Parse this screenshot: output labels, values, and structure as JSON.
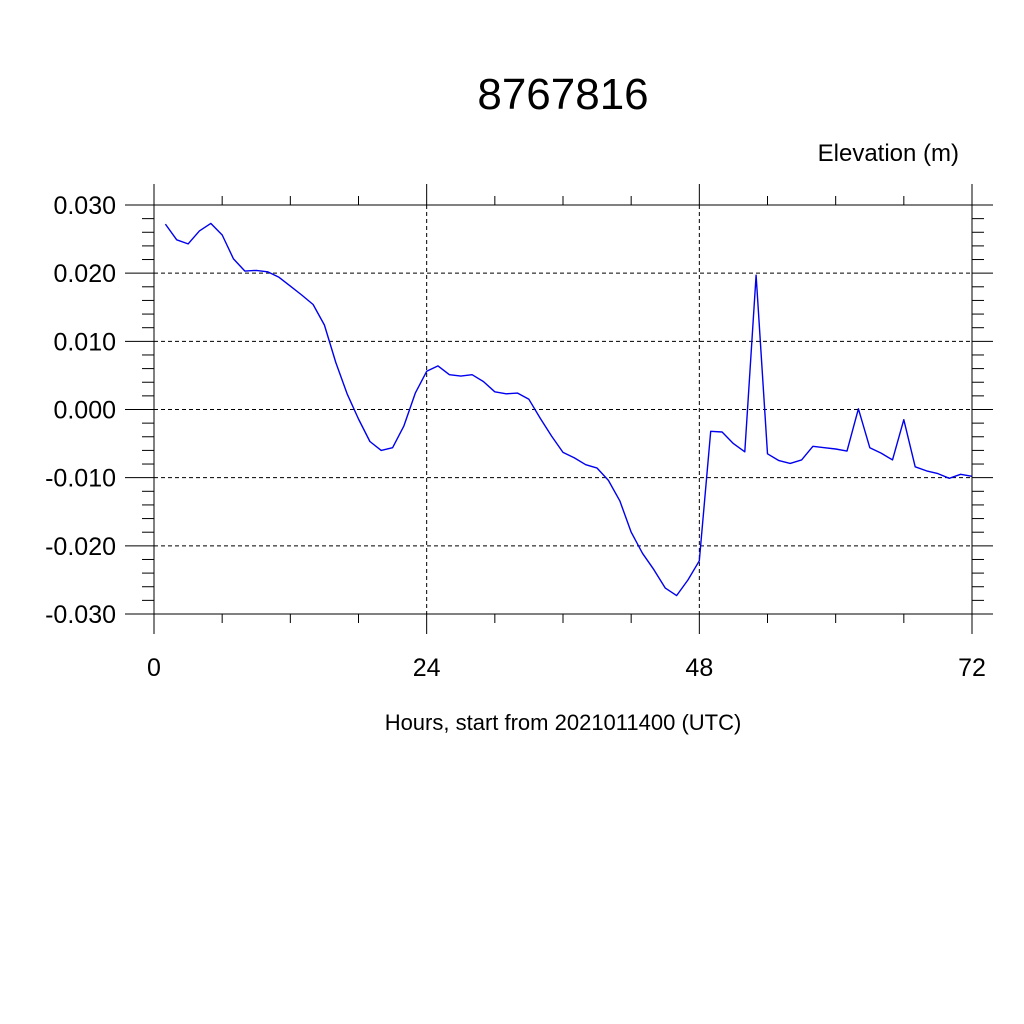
{
  "chart_data": {
    "type": "line",
    "title": "8767816",
    "ylabel": "Elevation (m)",
    "xlabel": "Hours, start from 2021011400 (UTC)",
    "xlim": [
      0,
      72
    ],
    "ylim": [
      -0.03,
      0.03
    ],
    "x_ticks": [
      0,
      24,
      48,
      72
    ],
    "x_tick_labels": [
      "0",
      "24",
      "48",
      "72"
    ],
    "y_ticks": [
      -0.03,
      -0.02,
      -0.01,
      0.0,
      0.01,
      0.02,
      0.03
    ],
    "y_tick_labels": [
      "-0.030",
      "-0.020",
      "-0.010",
      "0.000",
      "0.010",
      "0.020",
      "0.030"
    ],
    "grid": true,
    "series_color": "#0000ee",
    "series": [
      {
        "x": [
          1,
          2,
          3,
          4,
          5,
          6,
          7,
          8,
          9,
          10,
          11,
          12,
          13,
          14,
          15,
          16,
          17,
          18,
          19,
          20,
          21,
          22,
          23,
          24,
          25,
          26,
          27,
          28,
          29,
          30,
          31,
          32,
          33,
          34,
          35,
          36,
          37,
          38,
          39,
          40,
          41,
          42,
          43,
          44,
          45,
          46,
          47,
          48,
          49,
          50,
          51,
          52,
          53,
          54,
          55,
          56,
          57,
          58,
          59,
          60,
          61,
          62,
          63,
          64,
          65,
          66,
          67,
          68,
          69,
          70,
          71,
          72
        ],
        "y": [
          0.0272,
          0.0249,
          0.0243,
          0.0262,
          0.0273,
          0.0256,
          0.0221,
          0.0203,
          0.0204,
          0.0202,
          0.0194,
          0.0181,
          0.0168,
          0.0154,
          0.0124,
          0.0069,
          0.0023,
          -0.0014,
          -0.0047,
          -0.006,
          -0.0056,
          -0.0024,
          0.0024,
          0.0056,
          0.0064,
          0.0051,
          0.0049,
          0.0051,
          0.0041,
          0.0026,
          0.0023,
          0.0024,
          0.0015,
          -0.0013,
          -0.0039,
          -0.0063,
          -0.0071,
          -0.0081,
          -0.0086,
          -0.0104,
          -0.0134,
          -0.018,
          -0.0211,
          -0.0235,
          -0.0262,
          -0.0273,
          -0.025,
          -0.0222,
          -0.0032,
          -0.0033,
          -0.005,
          -0.0062,
          0.0197,
          -0.0065,
          -0.0075,
          -0.0079,
          -0.0074,
          -0.0054,
          -0.0056,
          -0.0058,
          -0.0061,
          0.0001,
          -0.0056,
          -0.0064,
          -0.0074,
          -0.0015,
          -0.0084,
          -0.009,
          -0.0094,
          -0.0101,
          -0.0095,
          -0.0098
        ]
      }
    ]
  }
}
